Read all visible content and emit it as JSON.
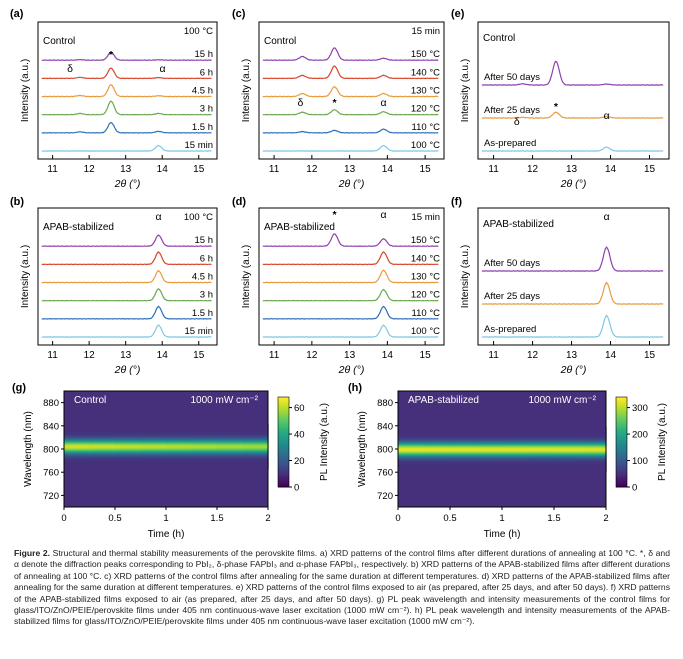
{
  "xrd_x": [
    11,
    12,
    13,
    14,
    15
  ],
  "xrd_xlabel": "2θ (°)",
  "xrd_ylabel": "Intensity (a.u.)",
  "chart_data": [
    {
      "id": "a",
      "panel_label": "(a)",
      "type": "line",
      "title": "Control",
      "corner_label": "100 °C",
      "xlim": [
        10.6,
        15.5
      ],
      "peak_labels": [
        {
          "text": "δ",
          "x": 11.75
        },
        {
          "text": "*",
          "x": 12.6
        },
        {
          "text": "α",
          "x": 13.9
        }
      ],
      "series": [
        {
          "name": "15 h",
          "color": "#8e3fb0",
          "peaks": [
            {
              "x": 11.75,
              "h": 0.02
            },
            {
              "x": 12.6,
              "h": 0.32
            },
            {
              "x": 13.9,
              "h": 0.015
            }
          ]
        },
        {
          "name": "6 h",
          "color": "#d9452b",
          "peaks": [
            {
              "x": 11.75,
              "h": 0.04
            },
            {
              "x": 12.6,
              "h": 0.42
            },
            {
              "x": 13.9,
              "h": 0.03
            }
          ]
        },
        {
          "name": "4.5 h",
          "color": "#e89b3f",
          "peaks": [
            {
              "x": 11.75,
              "h": 0.04
            },
            {
              "x": 12.6,
              "h": 0.48
            },
            {
              "x": 13.9,
              "h": 0.03
            }
          ]
        },
        {
          "name": "3 h",
          "color": "#6aa84f",
          "peaks": [
            {
              "x": 11.75,
              "h": 0.05
            },
            {
              "x": 12.6,
              "h": 0.55
            },
            {
              "x": 13.9,
              "h": 0.05
            }
          ]
        },
        {
          "name": "1.5 h",
          "color": "#2c6fbb",
          "peaks": [
            {
              "x": 11.75,
              "h": 0.04
            },
            {
              "x": 12.6,
              "h": 0.42
            },
            {
              "x": 13.9,
              "h": 0.06
            }
          ]
        },
        {
          "name": "15 min",
          "color": "#7ec8e3",
          "peaks": [
            {
              "x": 11.75,
              "h": 0.0
            },
            {
              "x": 12.6,
              "h": 0.0
            },
            {
              "x": 13.9,
              "h": 0.22
            }
          ]
        }
      ]
    },
    {
      "id": "c",
      "panel_label": "(c)",
      "type": "line",
      "title": "Control",
      "corner_label": "15 min",
      "xlim": [
        10.6,
        15.5
      ],
      "peak_labels": [
        {
          "text": "δ",
          "x": 11.75
        },
        {
          "text": "*",
          "x": 12.6
        },
        {
          "text": "α",
          "x": 13.9
        }
      ],
      "series": [
        {
          "name": "150 °C",
          "color": "#8e3fb0",
          "peaks": [
            {
              "x": 11.75,
              "h": 0.15
            },
            {
              "x": 12.6,
              "h": 0.5
            },
            {
              "x": 13.9,
              "h": 0.08
            }
          ]
        },
        {
          "name": "140 °C",
          "color": "#d9452b",
          "peaks": [
            {
              "x": 11.75,
              "h": 0.12
            },
            {
              "x": 12.6,
              "h": 0.5
            },
            {
              "x": 13.9,
              "h": 0.12
            }
          ]
        },
        {
          "name": "130 °C",
          "color": "#e89b3f",
          "peaks": [
            {
              "x": 11.75,
              "h": 0.12
            },
            {
              "x": 12.6,
              "h": 0.4
            },
            {
              "x": 13.9,
              "h": 0.12
            }
          ]
        },
        {
          "name": "120 °C",
          "color": "#6aa84f",
          "peaks": [
            {
              "x": 11.75,
              "h": 0.1
            },
            {
              "x": 12.6,
              "h": 0.2
            },
            {
              "x": 13.9,
              "h": 0.12
            }
          ]
        },
        {
          "name": "110 °C",
          "color": "#2c6fbb",
          "peaks": [
            {
              "x": 11.75,
              "h": 0.05
            },
            {
              "x": 12.6,
              "h": 0.1
            },
            {
              "x": 13.9,
              "h": 0.15
            }
          ]
        },
        {
          "name": "100 °C",
          "color": "#7ec8e3",
          "peaks": [
            {
              "x": 11.75,
              "h": 0.0
            },
            {
              "x": 12.6,
              "h": 0.0
            },
            {
              "x": 13.9,
              "h": 0.22
            }
          ]
        }
      ]
    },
    {
      "id": "e",
      "panel_label": "(e)",
      "type": "line",
      "title": "Control",
      "corner_label": "",
      "xlim": [
        10.6,
        15.5
      ],
      "peak_labels": [
        {
          "text": "δ",
          "x": 11.75
        },
        {
          "text": "*",
          "x": 12.6
        },
        {
          "text": "α",
          "x": 13.9
        }
      ],
      "series": [
        {
          "name": "After 50 days",
          "color": "#8e3fb0",
          "peaks": [
            {
              "x": 11.75,
              "h": 0.05
            },
            {
              "x": 12.6,
              "h": 1.0
            },
            {
              "x": 13.9,
              "h": 0.04
            }
          ]
        },
        {
          "name": "After 25 days",
          "color": "#e89b3f",
          "peaks": [
            {
              "x": 11.75,
              "h": 0.03
            },
            {
              "x": 12.6,
              "h": 0.24
            },
            {
              "x": 13.9,
              "h": 0.06
            }
          ]
        },
        {
          "name": "As-prepared",
          "color": "#7ec8e3",
          "peaks": [
            {
              "x": 11.75,
              "h": 0.0
            },
            {
              "x": 12.6,
              "h": 0.0
            },
            {
              "x": 13.9,
              "h": 0.16
            }
          ]
        }
      ]
    },
    {
      "id": "b",
      "panel_label": "(b)",
      "type": "line",
      "title": "APAB-stabilized",
      "corner_label": "100 °C",
      "xlim": [
        10.6,
        15.5
      ],
      "peak_labels": [
        {
          "text": "α",
          "x": 13.9
        }
      ],
      "series": [
        {
          "name": "15 h",
          "color": "#8e3fb0",
          "peaks": [
            {
              "x": 13.9,
              "h": 0.45
            }
          ]
        },
        {
          "name": "6 h",
          "color": "#d9452b",
          "peaks": [
            {
              "x": 13.9,
              "h": 0.5
            }
          ]
        },
        {
          "name": "4.5 h",
          "color": "#e89b3f",
          "peaks": [
            {
              "x": 13.9,
              "h": 0.48
            }
          ]
        },
        {
          "name": "3 h",
          "color": "#6aa84f",
          "peaks": [
            {
              "x": 13.9,
              "h": 0.48
            }
          ]
        },
        {
          "name": "1.5 h",
          "color": "#2c6fbb",
          "peaks": [
            {
              "x": 13.9,
              "h": 0.5
            }
          ]
        },
        {
          "name": "15 min",
          "color": "#7ec8e3",
          "peaks": [
            {
              "x": 13.9,
              "h": 0.48
            }
          ]
        }
      ]
    },
    {
      "id": "d",
      "panel_label": "(d)",
      "type": "line",
      "title": "APAB-stabilized",
      "corner_label": "15 min",
      "xlim": [
        10.6,
        15.5
      ],
      "peak_labels": [
        {
          "text": "*",
          "x": 12.6
        },
        {
          "text": "α",
          "x": 13.9
        }
      ],
      "series": [
        {
          "name": "150 °C",
          "color": "#8e3fb0",
          "peaks": [
            {
              "x": 12.6,
              "h": 0.5
            },
            {
              "x": 13.9,
              "h": 0.3
            }
          ]
        },
        {
          "name": "140 °C",
          "color": "#d9452b",
          "peaks": [
            {
              "x": 13.9,
              "h": 0.5
            }
          ]
        },
        {
          "name": "130 °C",
          "color": "#e89b3f",
          "peaks": [
            {
              "x": 13.9,
              "h": 0.5
            }
          ]
        },
        {
          "name": "120 °C",
          "color": "#6aa84f",
          "peaks": [
            {
              "x": 13.9,
              "h": 0.45
            }
          ]
        },
        {
          "name": "110 °C",
          "color": "#2c6fbb",
          "peaks": [
            {
              "x": 13.9,
              "h": 0.5
            }
          ]
        },
        {
          "name": "100 °C",
          "color": "#7ec8e3",
          "peaks": [
            {
              "x": 13.9,
              "h": 0.48
            }
          ]
        }
      ]
    },
    {
      "id": "f",
      "panel_label": "(f)",
      "type": "line",
      "title": "APAB-stabilized",
      "corner_label": "",
      "xlim": [
        10.6,
        15.5
      ],
      "peak_labels": [
        {
          "text": "α",
          "x": 13.9
        }
      ],
      "series": [
        {
          "name": "After 50 days",
          "color": "#8e3fb0",
          "peaks": [
            {
              "x": 13.9,
              "h": 1.0
            }
          ]
        },
        {
          "name": "After 25 days",
          "color": "#e89b3f",
          "peaks": [
            {
              "x": 13.9,
              "h": 0.9
            }
          ]
        },
        {
          "name": "As-prepared",
          "color": "#7ec8e3",
          "peaks": [
            {
              "x": 13.9,
              "h": 0.9
            }
          ]
        }
      ]
    },
    {
      "id": "g",
      "panel_label": "(g)",
      "type": "heatmap",
      "title": "Control",
      "power_label": "1000 mW cm⁻²",
      "xlabel": "Time (h)",
      "ylabel": "Wavelength (nm)",
      "cbar_label": "PL Intensity (a.u.)",
      "xlim": [
        0,
        2
      ],
      "ylim": [
        700,
        900
      ],
      "x_ticks": [
        "0",
        "0.5",
        "1",
        "1.5",
        "2"
      ],
      "y_ticks": [
        "720",
        "760",
        "800",
        "840",
        "880"
      ],
      "cbar_ticks": [
        "0",
        "20",
        "40",
        "60"
      ],
      "cbar_max": 68,
      "peak_wavelength": 805,
      "peak_width": 13,
      "peak_intensity_start": 64,
      "peak_intensity_end": 58
    },
    {
      "id": "h",
      "panel_label": "(h)",
      "type": "heatmap",
      "title": "APAB-stabilized",
      "power_label": "1000 mW cm⁻²",
      "xlabel": "Time (h)",
      "ylabel": "Wavelength (nm)",
      "cbar_label": "PL Intensity (a.u.)",
      "xlim": [
        0,
        2
      ],
      "ylim": [
        700,
        900
      ],
      "x_ticks": [
        "0",
        "0.5",
        "1",
        "1.5",
        "2"
      ],
      "y_ticks": [
        "720",
        "760",
        "800",
        "840",
        "880"
      ],
      "cbar_ticks": [
        "0",
        "100",
        "200",
        "300"
      ],
      "cbar_max": 340,
      "peak_wavelength": 800,
      "peak_width": 13,
      "peak_intensity_start": 330,
      "peak_intensity_end": 325
    }
  ],
  "caption": {
    "heading": "Figure 2.",
    "body": "Structural and thermal stability measurements of the perovskite films. a) XRD patterns of the control films after different durations of annealing at 100 °C. *, δ and α denote the diffraction peaks corresponding to PbI₂, δ-phase FAPbI₃ and α-phase FAPbI₃, respectively. b) XRD patterns of the APAB-stabilized films after different durations of annealing at 100 °C. c) XRD patterns of the control films after annealing for the same duration at different temperatures. d) XRD patterns of the APAB-stabilized films after annealing for the same duration at different temperatures. e) XRD patterns of the control films exposed to air (as prepared, after 25 days, and after 50 days). f) XRD patterns of the APAB-stabilized films exposed to air (as prepared, after 25 days, and after 50 days). g) PL peak wavelength and intensity measurements of the control films for glass/ITO/ZnO/PEIE/perovskite films under 405 nm continuous-wave laser excitation (1000 mW cm⁻²). h) PL peak wavelength and intensity measurements of the APAB-stabilized films for glass/ITO/ZnO/PEIE/perovskite films under 405 nm continuous-wave laser excitation (1000 mW cm⁻²)."
  }
}
